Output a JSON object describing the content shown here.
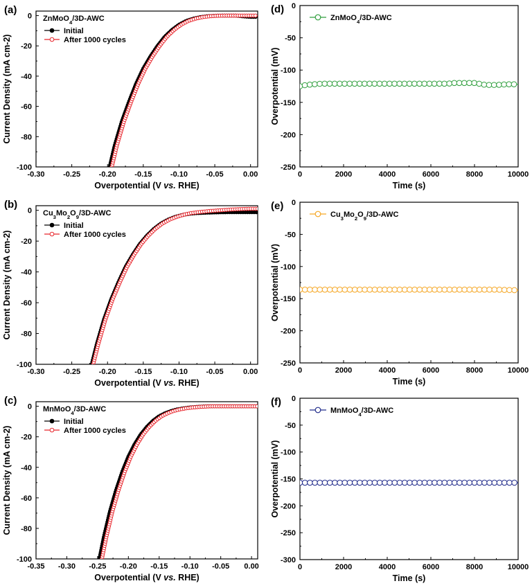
{
  "chart_data": [
    {
      "panel": "(a)",
      "type": "line",
      "annotation": "ZnMoO4/3D-AWC",
      "xlabel": "Overpotential (V vs. RHE)",
      "ylabel": "Current Density (mA cm-2)",
      "xlim": [
        -0.3,
        0.01
      ],
      "ylim": [
        -100,
        3
      ],
      "xticks": [
        -0.3,
        -0.25,
        -0.2,
        -0.15,
        -0.1,
        -0.05,
        0.0
      ],
      "yticks": [
        0,
        -20,
        -40,
        -60,
        -80,
        -100
      ],
      "legend_position": "top-left",
      "series": [
        {
          "name": "Initial",
          "color": "#000000",
          "marker": "filled-circle",
          "x": [
            -0.197,
            -0.19,
            -0.18,
            -0.17,
            -0.16,
            -0.15,
            -0.14,
            -0.13,
            -0.12,
            -0.11,
            -0.1,
            -0.09,
            -0.08,
            -0.07,
            -0.06,
            -0.05,
            -0.04,
            -0.03,
            -0.02,
            -0.01,
            0.0,
            0.01
          ],
          "y": [
            -100,
            -86,
            -70,
            -57,
            -45,
            -35,
            -27,
            -20,
            -14,
            -9.5,
            -6,
            -3.5,
            -2,
            -1,
            -0.4,
            -0.1,
            0,
            0,
            0,
            -0.5,
            -0.8,
            -0.8
          ]
        },
        {
          "name": "After 1000 cycles",
          "color": "#e8242b",
          "marker": "open-circle",
          "x": [
            -0.194,
            -0.187,
            -0.177,
            -0.167,
            -0.157,
            -0.147,
            -0.137,
            -0.127,
            -0.117,
            -0.107,
            -0.097,
            -0.087,
            -0.077,
            -0.067,
            -0.057,
            -0.047,
            -0.037,
            -0.027,
            -0.017,
            -0.007,
            0.003,
            0.01
          ],
          "y": [
            -100,
            -86,
            -70,
            -57,
            -45,
            -35,
            -27,
            -20,
            -14,
            -9.5,
            -6,
            -3.5,
            -2,
            -1,
            -0.4,
            -0.1,
            0,
            0,
            0,
            0,
            0,
            0
          ]
        }
      ]
    },
    {
      "panel": "(b)",
      "type": "line",
      "annotation": "Cu3Mo2O9/3D-AWC",
      "xlabel": "Overpotential (V vs. RHE)",
      "ylabel": "Current Density (mA cm-2)",
      "xlim": [
        -0.3,
        0.01
      ],
      "ylim": [
        -100,
        3
      ],
      "xticks": [
        -0.3,
        -0.25,
        -0.2,
        -0.15,
        -0.1,
        -0.05,
        0.0
      ],
      "yticks": [
        0,
        -20,
        -40,
        -60,
        -80,
        -100
      ],
      "legend_position": "top-left",
      "series": [
        {
          "name": "Initial",
          "color": "#000000",
          "marker": "filled-circle",
          "x": [
            -0.222,
            -0.215,
            -0.205,
            -0.195,
            -0.185,
            -0.175,
            -0.165,
            -0.155,
            -0.145,
            -0.135,
            -0.125,
            -0.115,
            -0.105,
            -0.095,
            -0.085,
            -0.075,
            -0.06,
            -0.045,
            -0.03,
            -0.015,
            0.0,
            0.01
          ],
          "y": [
            -100,
            -87,
            -71,
            -58,
            -47,
            -37,
            -29,
            -22,
            -16.5,
            -12,
            -8.5,
            -6,
            -4.2,
            -3,
            -2.2,
            -1.8,
            -1.5,
            -1.3,
            -1.2,
            -1.2,
            -1.2,
            -1.2
          ]
        },
        {
          "name": "After 1000 cycles",
          "color": "#e8242b",
          "marker": "open-circle",
          "x": [
            -0.22,
            -0.213,
            -0.203,
            -0.193,
            -0.183,
            -0.173,
            -0.163,
            -0.153,
            -0.143,
            -0.133,
            -0.123,
            -0.113,
            -0.103,
            -0.093,
            -0.083,
            -0.073,
            -0.058,
            -0.043,
            -0.028,
            -0.013,
            0.0,
            0.01
          ],
          "y": [
            -100,
            -87,
            -71,
            -58,
            -47,
            -37,
            -29,
            -22,
            -16.5,
            -12,
            -8.5,
            -6,
            -4.2,
            -2.8,
            -1.8,
            -1.2,
            -0.5,
            0,
            0.5,
            0.8,
            1,
            1
          ]
        }
      ]
    },
    {
      "panel": "(c)",
      "type": "line",
      "annotation": "MnMoO4/3D-AWC",
      "xlabel": "Overpotential (V vs. RHE)",
      "ylabel": "Current Density (mA cm-2)",
      "xlim": [
        -0.35,
        0.01
      ],
      "ylim": [
        -100,
        3
      ],
      "xticks": [
        -0.35,
        -0.3,
        -0.25,
        -0.2,
        -0.15,
        -0.1,
        -0.05,
        0.0
      ],
      "yticks": [
        0,
        -20,
        -40,
        -60,
        -80,
        -100
      ],
      "legend_position": "top-left",
      "series": [
        {
          "name": "Initial",
          "color": "#000000",
          "marker": "filled-circle",
          "x": [
            -0.247,
            -0.24,
            -0.23,
            -0.22,
            -0.21,
            -0.2,
            -0.19,
            -0.18,
            -0.17,
            -0.16,
            -0.15,
            -0.14,
            -0.13,
            -0.12,
            -0.11,
            -0.1,
            -0.085,
            -0.07,
            -0.05,
            -0.03,
            -0.01,
            0.01
          ],
          "y": [
            -100,
            -86,
            -69,
            -55,
            -43,
            -33,
            -25,
            -18.5,
            -13.5,
            -9.5,
            -6.5,
            -4.5,
            -3,
            -2,
            -1.3,
            -0.8,
            -0.3,
            0,
            0,
            0,
            0,
            0
          ]
        },
        {
          "name": "After 1000 cycles",
          "color": "#e8242b",
          "marker": "open-circle",
          "x": [
            -0.243,
            -0.236,
            -0.226,
            -0.216,
            -0.206,
            -0.196,
            -0.186,
            -0.176,
            -0.166,
            -0.156,
            -0.146,
            -0.136,
            -0.126,
            -0.116,
            -0.106,
            -0.096,
            -0.081,
            -0.066,
            -0.046,
            -0.026,
            -0.006,
            0.01
          ],
          "y": [
            -100,
            -86,
            -69,
            -55,
            -43,
            -33,
            -25,
            -18.5,
            -13.5,
            -9.5,
            -6.5,
            -4.5,
            -3,
            -2,
            -1.3,
            -0.8,
            -0.3,
            0,
            0,
            0,
            0,
            0
          ]
        }
      ]
    },
    {
      "panel": "(d)",
      "type": "line",
      "xlabel": "Time (s)",
      "ylabel": "Overpotential (mV)",
      "xlim": [
        0,
        10000
      ],
      "ylim": [
        -250,
        0
      ],
      "xticks": [
        0,
        2000,
        4000,
        6000,
        8000,
        10000
      ],
      "yticks": [
        0,
        -50,
        -100,
        -150,
        -200,
        -250
      ],
      "legend_position": "top-left",
      "series": [
        {
          "name": "ZnMoO4/3D-AWC",
          "color": "#2e9e3c",
          "marker": "open-circle",
          "x": [
            0,
            100,
            300,
            600,
            1000,
            1500,
            2000,
            3000,
            4000,
            5000,
            6000,
            6800,
            7000,
            7500,
            8000,
            8200,
            8500,
            9000,
            9500,
            10000
          ],
          "y": [
            -125,
            -124,
            -123,
            -122,
            -121,
            -121,
            -121,
            -121,
            -121,
            -121,
            -121,
            -121,
            -120,
            -120,
            -120,
            -121,
            -123,
            -123,
            -122,
            -122
          ]
        }
      ]
    },
    {
      "panel": "(e)",
      "type": "line",
      "xlabel": "Time (s)",
      "ylabel": "Overpotential (mV)",
      "xlim": [
        0,
        10000
      ],
      "ylim": [
        -250,
        0
      ],
      "xticks": [
        0,
        2000,
        4000,
        6000,
        8000,
        10000
      ],
      "yticks": [
        0,
        -50,
        -100,
        -150,
        -200,
        -250
      ],
      "legend_position": "top-left",
      "series": [
        {
          "name": "Cu3Mo2O9/3D-AWC",
          "color": "#f5a623",
          "marker": "open-circle",
          "x": [
            0,
            1000,
            2000,
            3000,
            4000,
            5000,
            6000,
            7000,
            8000,
            9000,
            10000
          ],
          "y": [
            -136,
            -136,
            -136,
            -136,
            -136,
            -136,
            -136,
            -136,
            -136,
            -136,
            -137
          ]
        }
      ]
    },
    {
      "panel": "(f)",
      "type": "line",
      "xlabel": "Time (s)",
      "ylabel": "Overpotential (mV)",
      "xlim": [
        0,
        10000
      ],
      "ylim": [
        -300,
        0
      ],
      "xticks": [
        0,
        2000,
        4000,
        6000,
        8000,
        10000
      ],
      "yticks": [
        0,
        -50,
        -100,
        -150,
        -200,
        -250,
        -300
      ],
      "legend_position": "top-left",
      "series": [
        {
          "name": "MnMoO4/3D-AWC",
          "color": "#1f2a8a",
          "marker": "open-circle",
          "x": [
            0,
            1000,
            2000,
            3000,
            4000,
            5000,
            6000,
            7000,
            8000,
            9000,
            10000
          ],
          "y": [
            -157,
            -157,
            -157,
            -157,
            -157,
            -157,
            -157,
            -157,
            -157,
            -157,
            -157
          ]
        }
      ]
    }
  ]
}
